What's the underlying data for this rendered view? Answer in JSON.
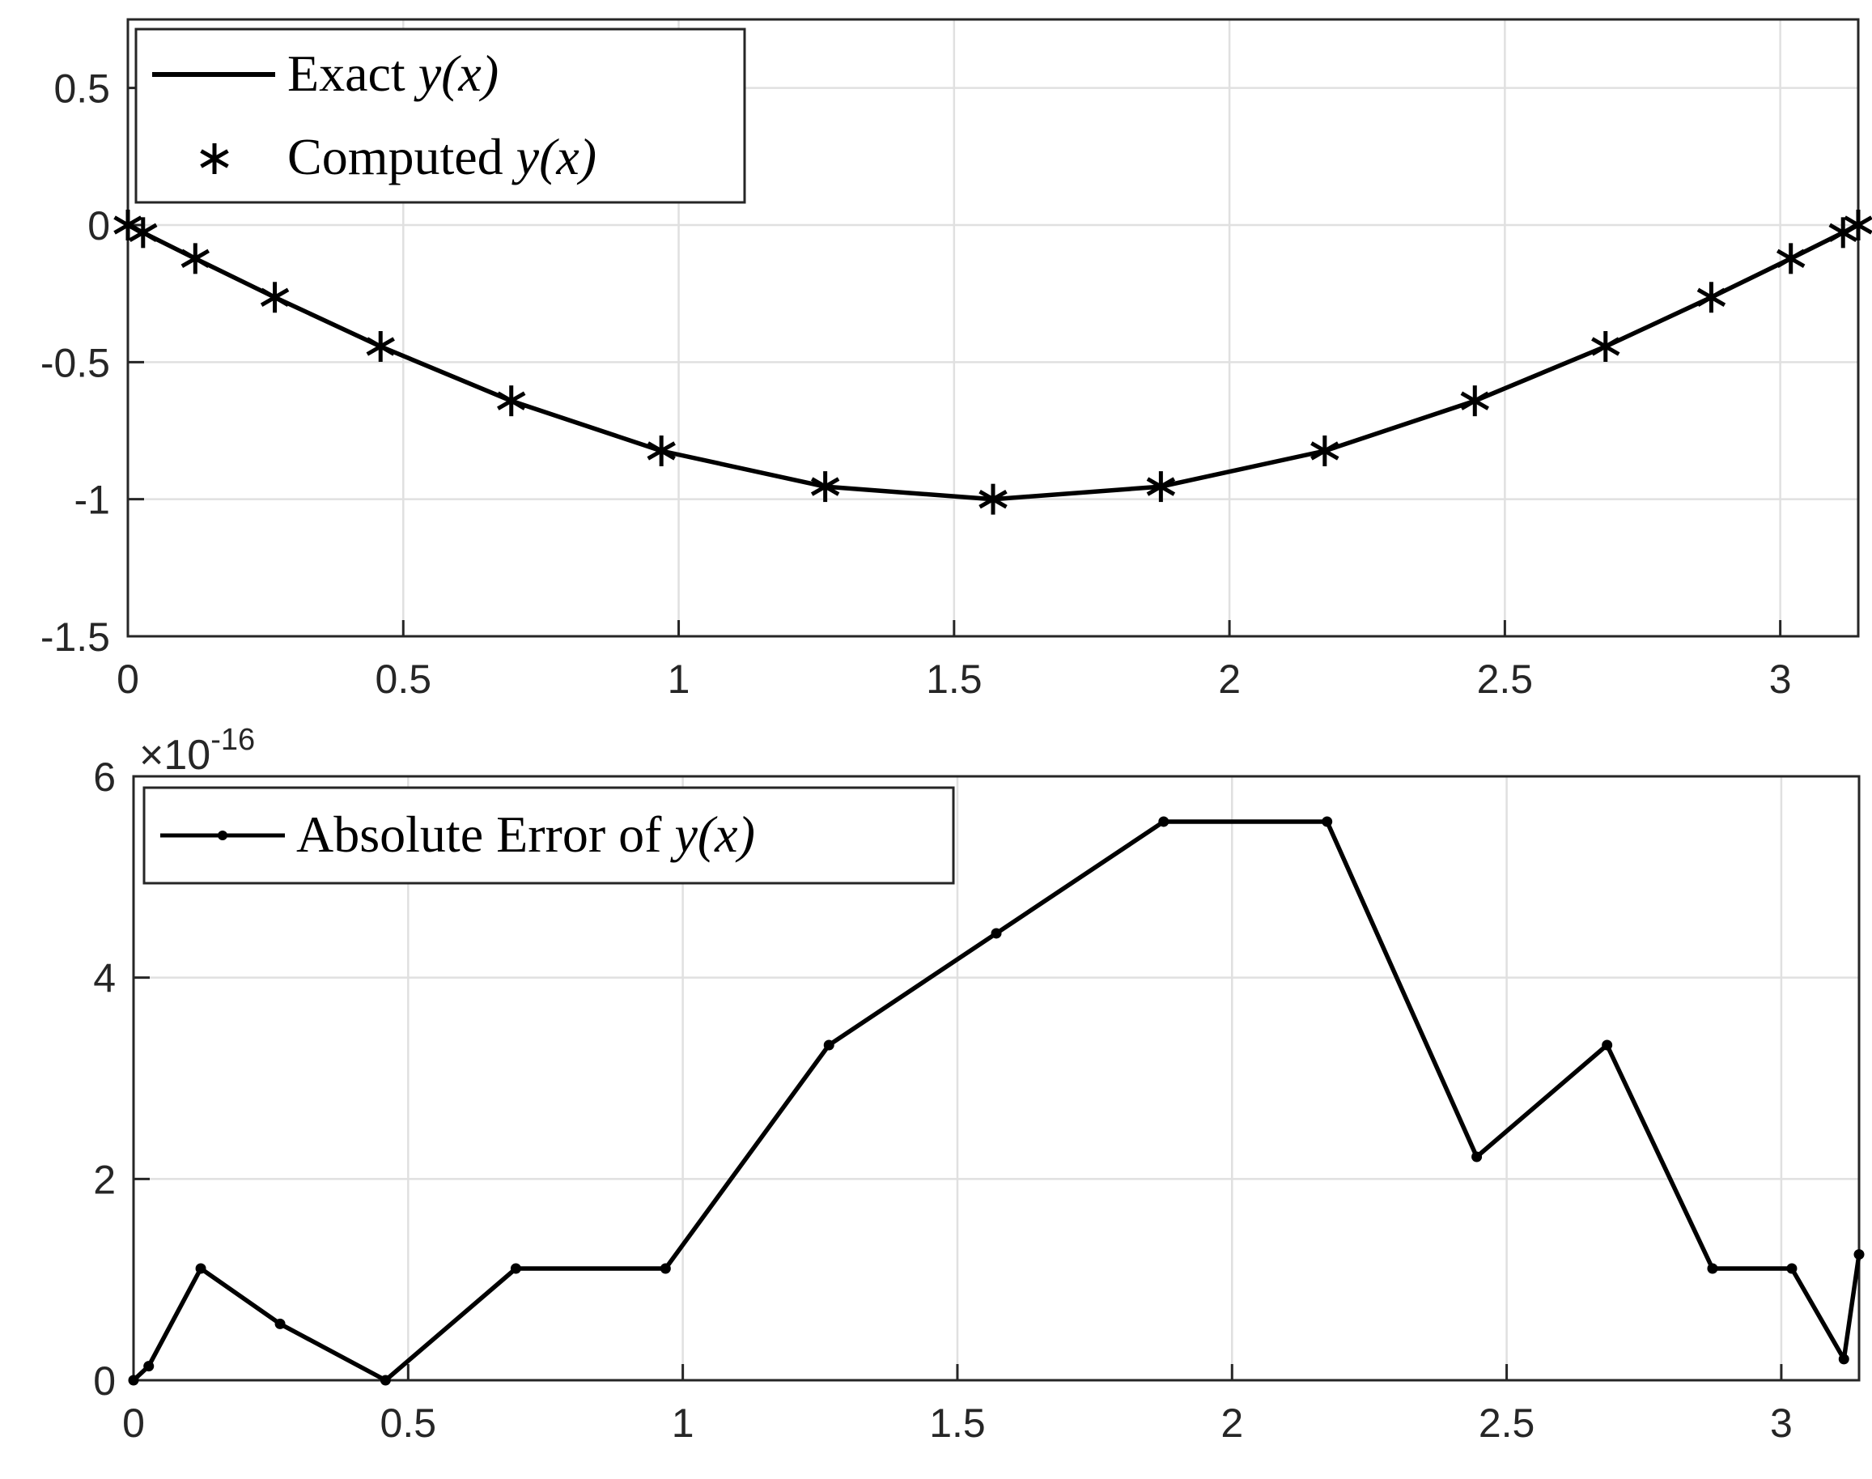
{
  "chart_data": [
    {
      "type": "line",
      "xlim": [
        0,
        3.14159
      ],
      "ylim": [
        -1.5,
        0.75
      ],
      "x_ticks": [
        "0",
        "0.5",
        "1",
        "1.5",
        "2",
        "2.5",
        "3"
      ],
      "y_ticks": [
        "0.5",
        "0",
        "-0.5",
        "-1",
        "-1.5"
      ],
      "grid": true,
      "legend_position": "top-left",
      "legend": {
        "exact": {
          "text": "Exact ",
          "math": "y(x)"
        },
        "computed": {
          "text": "Computed ",
          "math": "y(x)"
        }
      },
      "series": [
        {
          "key": "exact",
          "style": "solid line",
          "x": [
            0,
            0.0276,
            0.1224,
            0.2668,
            0.4588,
            0.6961,
            0.9686,
            1.2661,
            1.5708,
            1.8755,
            2.173,
            2.4455,
            2.6828,
            2.8748,
            3.0192,
            3.114,
            3.1416
          ],
          "y": [
            0,
            -0.0276,
            -0.1221,
            -0.2636,
            -0.4429,
            -0.6412,
            -0.8237,
            -0.954,
            -1.0,
            -0.954,
            -0.8237,
            -0.6412,
            -0.4429,
            -0.2636,
            -0.1221,
            -0.0276,
            0
          ]
        },
        {
          "key": "computed",
          "style": "asterisk markers",
          "x": [
            0,
            0.0276,
            0.1224,
            0.2668,
            0.4588,
            0.6961,
            0.9686,
            1.2661,
            1.5708,
            1.8755,
            2.173,
            2.4455,
            2.6828,
            2.8748,
            3.0192,
            3.114,
            3.1416
          ],
          "y": [
            0,
            -0.0276,
            -0.1221,
            -0.2636,
            -0.4429,
            -0.6412,
            -0.8237,
            -0.954,
            -1.0,
            -0.954,
            -0.8237,
            -0.6412,
            -0.4429,
            -0.2636,
            -0.1221,
            -0.0276,
            0
          ]
        }
      ]
    },
    {
      "type": "line",
      "xlim": [
        0,
        3.14159
      ],
      "ylim": [
        0,
        6
      ],
      "y_scale_exponent": {
        "prefix": "×10",
        "power": "-16"
      },
      "x_ticks": [
        "0",
        "0.5",
        "1",
        "1.5",
        "2",
        "2.5",
        "3"
      ],
      "y_ticks": [
        "6",
        "4",
        "2",
        "0"
      ],
      "grid": true,
      "legend_position": "top-left",
      "legend": {
        "error": {
          "text": "Absolute Error of ",
          "math": "y(x)"
        }
      },
      "series": [
        {
          "key": "error",
          "style": "line with dot markers",
          "x": [
            0,
            0.0276,
            0.1224,
            0.2668,
            0.4588,
            0.6961,
            0.9686,
            1.2661,
            1.5708,
            1.8755,
            2.173,
            2.4455,
            2.6828,
            2.8748,
            3.0192,
            3.114,
            3.1416
          ],
          "y": [
            0,
            0.14,
            1.11,
            0.56,
            0,
            1.11,
            1.11,
            3.33,
            4.44,
            5.55,
            5.55,
            2.22,
            3.33,
            1.11,
            1.11,
            0.21,
            1.25
          ]
        }
      ]
    }
  ]
}
